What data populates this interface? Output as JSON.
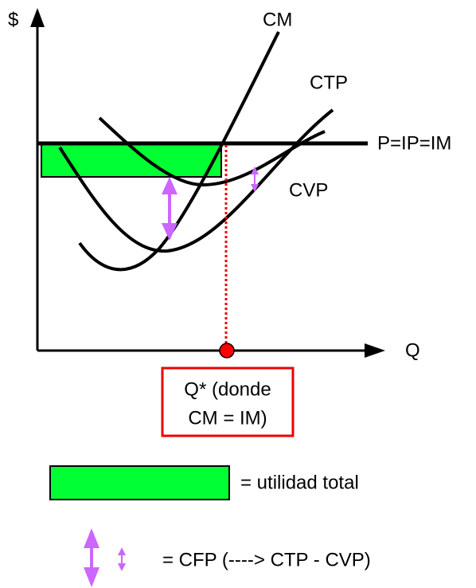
{
  "axes": {
    "y_label": "$",
    "x_label": "Q"
  },
  "curves": {
    "cm": "CM",
    "ctp": "CTP",
    "cvp": "CVP",
    "price": "P=IP=IM"
  },
  "annotation": {
    "line1": "Q* (donde",
    "line2": "CM = IM)"
  },
  "legend": {
    "profit": "= utilidad total",
    "fixed_cost": "= CFP (----> CTP - CVP)"
  }
}
